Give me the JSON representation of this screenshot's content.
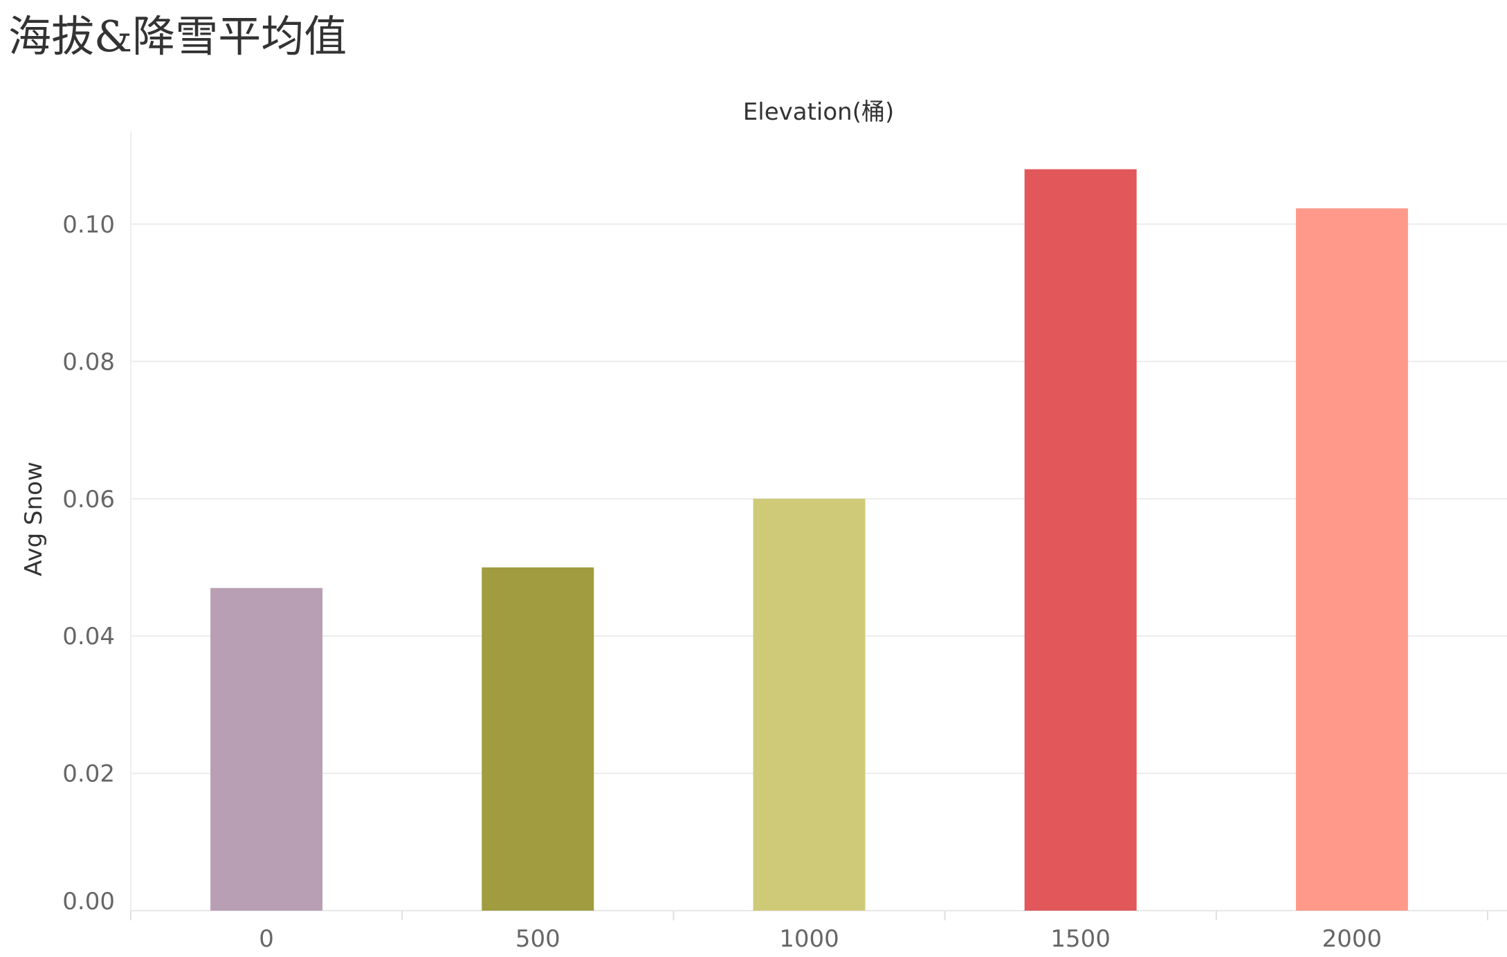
{
  "chart_data": {
    "type": "bar",
    "title": "海拔&降雪平均值",
    "xlabel": "Elevation(桶)",
    "ylabel": "Avg Snow",
    "categories": [
      "0",
      "500",
      "1000",
      "1500",
      "2000"
    ],
    "values": [
      0.047,
      0.05,
      0.06,
      0.108,
      0.1023
    ],
    "colors": [
      "#b89fb3",
      "#a09c3f",
      "#cfca77",
      "#e2575a",
      "#ff9a8a"
    ],
    "ylim": [
      0,
      0.1135
    ],
    "yticks": [
      "0.00",
      "0.02",
      "0.04",
      "0.06",
      "0.08",
      "0.10"
    ],
    "grid": true,
    "legend": "none"
  }
}
